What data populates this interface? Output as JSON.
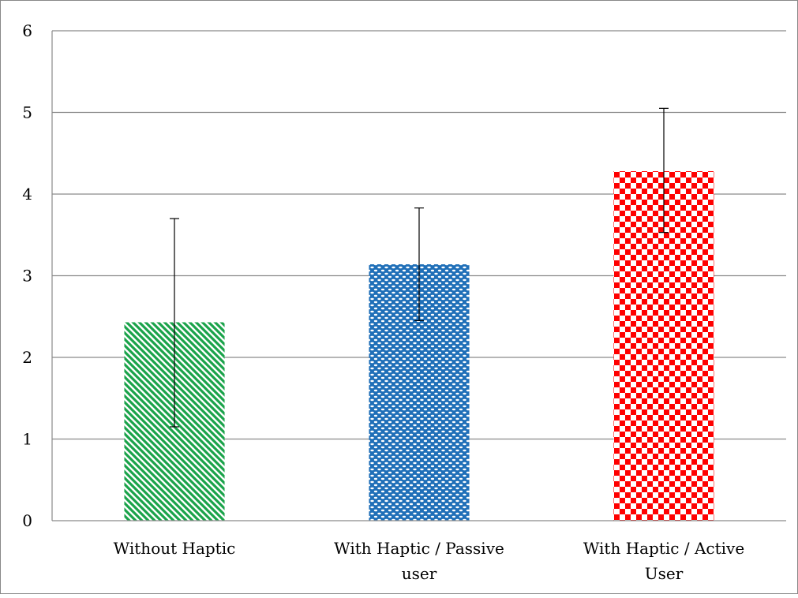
{
  "chart_data": {
    "type": "bar",
    "title": "",
    "xlabel": "",
    "ylabel": "",
    "ylim": [
      0,
      6
    ],
    "yticks": [
      "0",
      "1",
      "2",
      "3",
      "4",
      "5",
      "6"
    ],
    "grid": true,
    "legend": "none",
    "categories": [
      [
        "Without Haptic"
      ],
      [
        "With Haptic / Passive",
        "user"
      ],
      [
        "With Haptic / Active",
        "User"
      ]
    ],
    "values": [
      2.43,
      3.14,
      4.28
    ],
    "error_low": [
      1.15,
      2.45,
      3.53
    ],
    "error_high": [
      3.7,
      3.83,
      5.05
    ],
    "colors": [
      "#1aa34a",
      "#1f6fb8",
      "#ff0000"
    ],
    "patterns": [
      "diagonal-stripes",
      "dots",
      "checkerboard"
    ]
  }
}
